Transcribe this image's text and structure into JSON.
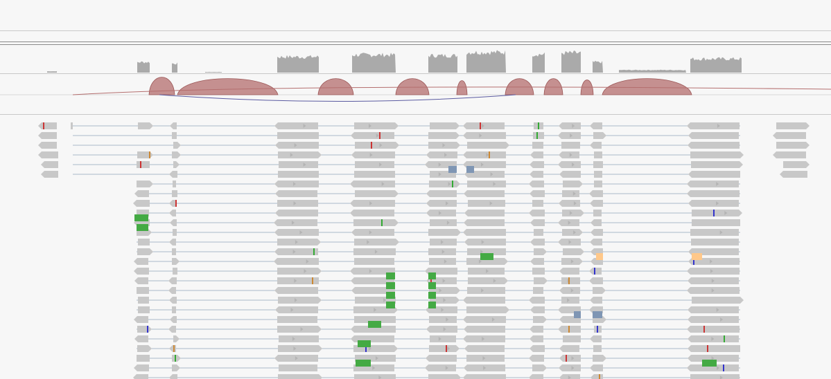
{
  "viewer": {
    "type": "genome-browser",
    "tracks": [
      "coverage-track",
      "splice-junction-track",
      "alignment-track"
    ],
    "colors": {
      "background": "#f7f7f7",
      "coverage": "#aaaaaa",
      "junction_forward": "#b46e6e",
      "junction_reverse": "#5a5aa0",
      "read": "#c8c8c8",
      "read_arrow": "#b4b4b4",
      "intron_line": "#a8b8c8",
      "soft_clip": "#44aa44",
      "mismatch_a": "#33aa33",
      "mismatch_c": "#3333cc",
      "mismatch_t": "#cc3333",
      "mismatch_g": "#cc8833",
      "multi_mapped": "#7f96b4",
      "highlight": "#ffc88a"
    }
  }
}
